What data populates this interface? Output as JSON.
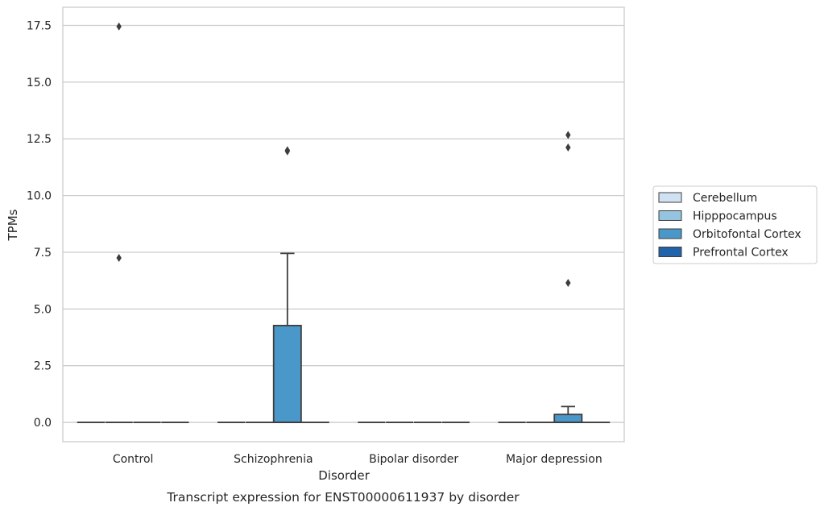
{
  "chart_data": {
    "type": "box",
    "caption": "Transcript expression for ENST00000611937 by disorder",
    "xlabel": "Disorder",
    "ylabel": "TPMs",
    "ylim": [
      -0.85,
      18.3
    ],
    "yticks": [
      0.0,
      2.5,
      5.0,
      7.5,
      10.0,
      12.5,
      15.0,
      17.5
    ],
    "ytick_labels": [
      "0.0",
      "2.5",
      "5.0",
      "7.5",
      "10.0",
      "12.5",
      "15.0",
      "17.5"
    ],
    "grid": "horizontal",
    "legend_position": "right",
    "categories": [
      "Control",
      "Schizophrenia",
      "Bipolar disorder",
      "Major depression"
    ],
    "series": [
      {
        "name": "Cerebellum",
        "color": "#d0e1f2",
        "boxes": [
          {
            "category": "Control",
            "q1": 0,
            "median": 0,
            "q3": 0,
            "whisker_low": 0,
            "whisker_high": 0,
            "outliers": []
          },
          {
            "category": "Schizophrenia",
            "q1": 0,
            "median": 0,
            "q3": 0,
            "whisker_low": 0,
            "whisker_high": 0,
            "outliers": []
          },
          {
            "category": "Bipolar disorder",
            "q1": 0,
            "median": 0,
            "q3": 0,
            "whisker_low": 0,
            "whisker_high": 0,
            "outliers": []
          },
          {
            "category": "Major depression",
            "q1": 0,
            "median": 0,
            "q3": 0,
            "whisker_low": 0,
            "whisker_high": 0,
            "outliers": []
          }
        ]
      },
      {
        "name": "Hipppocampus",
        "color": "#94c4df",
        "boxes": [
          {
            "category": "Control",
            "q1": 0,
            "median": 0,
            "q3": 0,
            "whisker_low": 0,
            "whisker_high": 0,
            "outliers": [
              17.45,
              7.25
            ]
          },
          {
            "category": "Schizophrenia",
            "q1": 0,
            "median": 0,
            "q3": 0,
            "whisker_low": 0,
            "whisker_high": 0,
            "outliers": []
          },
          {
            "category": "Bipolar disorder",
            "q1": 0,
            "median": 0,
            "q3": 0,
            "whisker_low": 0,
            "whisker_high": 0,
            "outliers": []
          },
          {
            "category": "Major depression",
            "q1": 0,
            "median": 0,
            "q3": 0,
            "whisker_low": 0,
            "whisker_high": 0,
            "outliers": []
          }
        ]
      },
      {
        "name": "Orbitofontal Cortex",
        "color": "#4a98c9",
        "boxes": [
          {
            "category": "Control",
            "q1": 0,
            "median": 0,
            "q3": 0,
            "whisker_low": 0,
            "whisker_high": 0,
            "outliers": []
          },
          {
            "category": "Schizophrenia",
            "q1": 0,
            "median": 0,
            "q3": 4.27,
            "whisker_low": 0,
            "whisker_high": 7.45,
            "outliers": [
              11.95,
              12.0
            ]
          },
          {
            "category": "Bipolar disorder",
            "q1": 0,
            "median": 0,
            "q3": 0,
            "whisker_low": 0,
            "whisker_high": 0,
            "outliers": []
          },
          {
            "category": "Major depression",
            "q1": 0,
            "median": 0,
            "q3": 0.35,
            "whisker_low": 0,
            "whisker_high": 0.7,
            "outliers": [
              12.67,
              12.12,
              6.15
            ]
          }
        ]
      },
      {
        "name": "Prefrontal Cortex",
        "color": "#2163aa",
        "boxes": [
          {
            "category": "Control",
            "q1": 0,
            "median": 0,
            "q3": 0,
            "whisker_low": 0,
            "whisker_high": 0,
            "outliers": []
          },
          {
            "category": "Schizophrenia",
            "q1": 0,
            "median": 0,
            "q3": 0,
            "whisker_low": 0,
            "whisker_high": 0,
            "outliers": []
          },
          {
            "category": "Bipolar disorder",
            "q1": 0,
            "median": 0,
            "q3": 0,
            "whisker_low": 0,
            "whisker_high": 0,
            "outliers": []
          },
          {
            "category": "Major depression",
            "q1": 0,
            "median": 0,
            "q3": 0,
            "whisker_low": 0,
            "whisker_high": 0,
            "outliers": []
          }
        ]
      }
    ],
    "colors": {
      "grid": "#cccccc",
      "spine": "#cccccc",
      "box_edge": "#3d3d3d",
      "outlier": "#3d3d3d",
      "text": "#262626"
    }
  }
}
